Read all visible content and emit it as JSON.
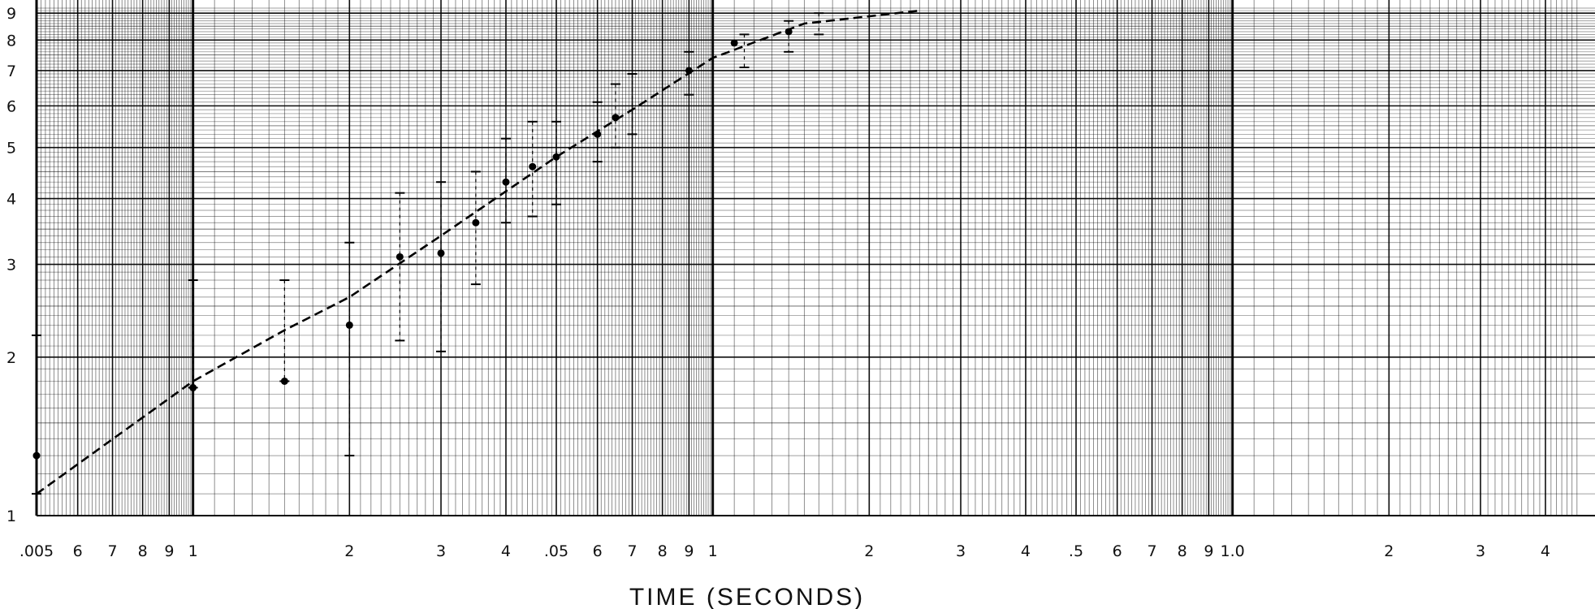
{
  "chart_data": {
    "type": "scatter",
    "title": "",
    "xlabel": "TIME (SECONDS)",
    "ylabel": "",
    "xscale": "log",
    "yscale": "log",
    "xlim": [
      0.005,
      4.3
    ],
    "ylim": [
      1,
      9
    ],
    "grid": true,
    "x_tick_labels": [
      {
        "x": 0.005,
        "label": ".005"
      },
      {
        "x": 0.006,
        "label": "6"
      },
      {
        "x": 0.007,
        "label": "7"
      },
      {
        "x": 0.008,
        "label": "8"
      },
      {
        "x": 0.009,
        "label": "9"
      },
      {
        "x": 0.01,
        "label": "1"
      },
      {
        "x": 0.02,
        "label": "2"
      },
      {
        "x": 0.03,
        "label": "3"
      },
      {
        "x": 0.04,
        "label": "4"
      },
      {
        "x": 0.05,
        "label": ".05"
      },
      {
        "x": 0.06,
        "label": "6"
      },
      {
        "x": 0.07,
        "label": "7"
      },
      {
        "x": 0.08,
        "label": "8"
      },
      {
        "x": 0.09,
        "label": "9"
      },
      {
        "x": 0.1,
        "label": "1"
      },
      {
        "x": 0.2,
        "label": "2"
      },
      {
        "x": 0.3,
        "label": "3"
      },
      {
        "x": 0.4,
        "label": "4"
      },
      {
        "x": 0.5,
        "label": ".5"
      },
      {
        "x": 0.6,
        "label": "6"
      },
      {
        "x": 0.7,
        "label": "7"
      },
      {
        "x": 0.8,
        "label": "8"
      },
      {
        "x": 0.9,
        "label": "9"
      },
      {
        "x": 1.0,
        "label": "1.0"
      },
      {
        "x": 2.0,
        "label": "2"
      },
      {
        "x": 3.0,
        "label": "3"
      },
      {
        "x": 4.0,
        "label": "4"
      }
    ],
    "y_tick_labels": [
      {
        "y": 1,
        "label": "1"
      },
      {
        "y": 2,
        "label": "2"
      },
      {
        "y": 3,
        "label": "3"
      },
      {
        "y": 4,
        "label": "4"
      },
      {
        "y": 5,
        "label": "5"
      },
      {
        "y": 6,
        "label": "6"
      },
      {
        "y": 7,
        "label": "7"
      },
      {
        "y": 8,
        "label": "8"
      },
      {
        "y": 9,
        "label": "9"
      }
    ],
    "points": [
      {
        "x": 0.005,
        "y": 1.3
      },
      {
        "x": 0.01,
        "y": 1.75
      },
      {
        "x": 0.015,
        "y": 1.8
      },
      {
        "x": 0.02,
        "y": 2.3
      },
      {
        "x": 0.025,
        "y": 3.1
      },
      {
        "x": 0.03,
        "y": 3.15
      },
      {
        "x": 0.035,
        "y": 3.6
      },
      {
        "x": 0.04,
        "y": 4.3
      },
      {
        "x": 0.045,
        "y": 4.6
      },
      {
        "x": 0.05,
        "y": 4.8
      },
      {
        "x": 0.06,
        "y": 5.3
      },
      {
        "x": 0.065,
        "y": 5.7
      },
      {
        "x": 0.09,
        "y": 7.0
      },
      {
        "x": 0.11,
        "y": 7.9
      },
      {
        "x": 0.14,
        "y": 8.3
      }
    ],
    "error_bars": [
      {
        "x": 0.005,
        "low": 1.1,
        "high": 2.2
      },
      {
        "x": 0.01,
        "low": 1.75,
        "high": 2.8
      },
      {
        "x": 0.015,
        "low": 1.8,
        "high": 2.8
      },
      {
        "x": 0.02,
        "low": 1.3,
        "high": 3.3
      },
      {
        "x": 0.025,
        "low": 2.15,
        "high": 4.1
      },
      {
        "x": 0.03,
        "low": 2.05,
        "high": 4.3
      },
      {
        "x": 0.035,
        "low": 2.75,
        "high": 4.5
      },
      {
        "x": 0.04,
        "low": 3.6,
        "high": 5.2
      },
      {
        "x": 0.045,
        "low": 3.7,
        "high": 5.6
      },
      {
        "x": 0.05,
        "low": 3.9,
        "high": 5.6
      },
      {
        "x": 0.06,
        "low": 4.7,
        "high": 6.1
      },
      {
        "x": 0.065,
        "low": 5.0,
        "high": 6.6
      },
      {
        "x": 0.07,
        "low": 5.3,
        "high": 6.9
      },
      {
        "x": 0.09,
        "low": 6.3,
        "high": 7.6
      },
      {
        "x": 0.115,
        "low": 7.1,
        "high": 8.2
      },
      {
        "x": 0.14,
        "low": 7.6,
        "high": 8.7
      },
      {
        "x": 0.16,
        "low": 8.2,
        "high": 9.0
      }
    ],
    "series": [
      {
        "style": "dashed",
        "x": [
          0.005,
          0.01,
          0.015,
          0.02,
          0.03,
          0.05,
          0.07,
          0.1,
          0.15,
          0.25
        ],
        "values": [
          1.1,
          1.8,
          2.25,
          2.6,
          3.4,
          4.8,
          5.9,
          7.4,
          8.6,
          9.1
        ]
      }
    ]
  }
}
